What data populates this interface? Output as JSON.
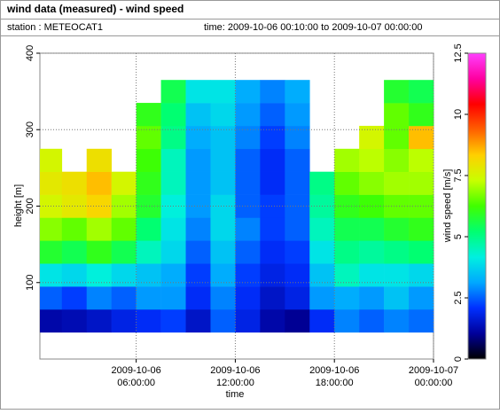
{
  "chart_data": {
    "type": "heatmap",
    "title": "wind data (measured) - wind speed",
    "station": "station : METEOCAT1",
    "time_range": "time: 2009-10-06 00:10:00 to 2009-10-07 00:00:00",
    "xlabel": "time",
    "ylabel": "height [m]",
    "colorbar_label": "wind speed [m/s]",
    "x_edges": [
      0.17,
      1.5,
      3,
      4.5,
      6,
      7.5,
      9,
      10.5,
      12,
      13.5,
      15,
      16.5,
      18,
      19.5,
      21,
      22.5,
      24
    ],
    "y_edges": [
      35,
      65,
      95,
      125,
      155,
      185,
      215,
      245,
      275,
      305,
      335,
      365
    ],
    "values": [
      [
        1.2,
        1.3,
        1.5,
        1.8,
        2,
        2.2,
        1.5,
        2.5,
        1.8,
        1.2,
        1,
        2,
        2.8,
        2.5,
        2.8,
        2.6
      ],
      [
        2.5,
        2.2,
        2.8,
        2.5,
        3,
        3,
        2,
        2.8,
        2,
        1.5,
        1.8,
        3,
        3.2,
        3,
        3.5,
        3
      ],
      [
        4,
        3.8,
        4.2,
        3.8,
        3.5,
        3.2,
        2.2,
        3.2,
        2.2,
        1.8,
        2,
        3.5,
        4.5,
        4,
        4,
        3.8
      ],
      [
        5.8,
        5.5,
        6,
        5.5,
        4.5,
        3.8,
        2.5,
        3.5,
        2.5,
        2,
        2.2,
        4,
        5,
        4.8,
        5,
        5.2
      ],
      [
        6.8,
        6.5,
        7,
        6.5,
        5.2,
        4,
        2.8,
        3.8,
        2.8,
        2.2,
        2.5,
        4.5,
        5.5,
        5.5,
        5.8,
        6
      ],
      [
        7.5,
        7.8,
        8.2,
        7,
        5.8,
        4.2,
        3,
        3.8,
        2.5,
        2.2,
        2.5,
        4.8,
        6,
        6.2,
        6.5,
        6.5
      ],
      [
        7.8,
        8,
        8.5,
        7.5,
        6,
        4.5,
        3,
        3.5,
        2.5,
        2,
        2.5,
        5,
        6.5,
        6.8,
        7,
        7
      ],
      [
        7.5,
        null,
        8,
        null,
        6.2,
        4.5,
        3,
        3.5,
        2.5,
        2,
        2.5,
        null,
        7,
        7.2,
        6.8,
        7.2
      ],
      [
        null,
        null,
        null,
        null,
        6.5,
        5,
        3.2,
        3.5,
        2.8,
        2.2,
        2.8,
        null,
        null,
        7.5,
        6.5,
        8.5
      ],
      [
        null,
        null,
        null,
        null,
        6,
        5.2,
        3.5,
        3.8,
        3,
        2.5,
        3,
        null,
        null,
        null,
        6.5,
        6
      ],
      [
        null,
        null,
        null,
        null,
        null,
        5.5,
        4,
        4,
        3.2,
        2.8,
        3.2,
        null,
        null,
        null,
        5.8,
        5.5
      ]
    ],
    "xlim": [
      0.17,
      24
    ],
    "xticks": [
      {
        "value": 6,
        "label": [
          "2009-10-06",
          "06:00:00"
        ]
      },
      {
        "value": 12,
        "label": [
          "2009-10-06",
          "12:00:00"
        ]
      },
      {
        "value": 18,
        "label": [
          "2009-10-06",
          "18:00:00"
        ]
      },
      {
        "value": 24,
        "label": [
          "2009-10-07",
          "00:00:00"
        ]
      }
    ],
    "ylim": [
      0,
      400
    ],
    "yticks": [
      100,
      200,
      300,
      400
    ],
    "clim": [
      0,
      12.5
    ],
    "cticks": [
      0,
      2.5,
      5,
      7.5,
      10,
      12.5
    ],
    "colormap": [
      "#000000",
      "#00009a",
      "#0030ff",
      "#00a8ff",
      "#00f0e0",
      "#00ff70",
      "#40ff00",
      "#c8ff00",
      "#ffd000",
      "#ff6000",
      "#ff0000",
      "#ff00a0",
      "#ff40ff"
    ],
    "grid": true
  }
}
